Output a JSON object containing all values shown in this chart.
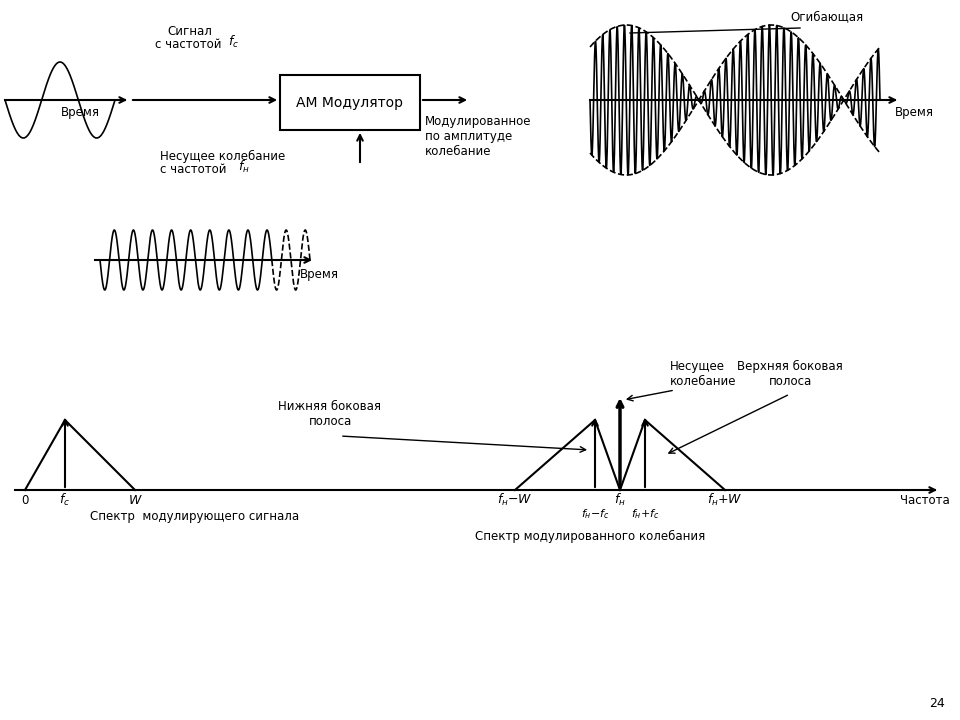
{
  "bg_color": "#ffffff",
  "text_color": "#000000",
  "page_num": "24",
  "modulator_label": "АМ Модулятор",
  "time_label": "Время",
  "envelope_label": "Огибающая",
  "spectrum_mod_label": "Спектр  модулирующего сигнала",
  "spectrum_carrier_label": "Спектр модулированного колебания",
  "lower_sideband": "Нижняя боковая\nполоса",
  "upper_sideband": "Верхняя боковая\nполоса",
  "carrier_osc_label": "Несущее\nколебание",
  "freq_label": "Частота",
  "signal_label_1": "Сигнал",
  "signal_label_2": "с частотой ",
  "carrier_label_1": "Несущее колебание",
  "carrier_label_2": "с частотой ",
  "mod_output_label": "Модулированное\nпо амплитуде\nколебание"
}
